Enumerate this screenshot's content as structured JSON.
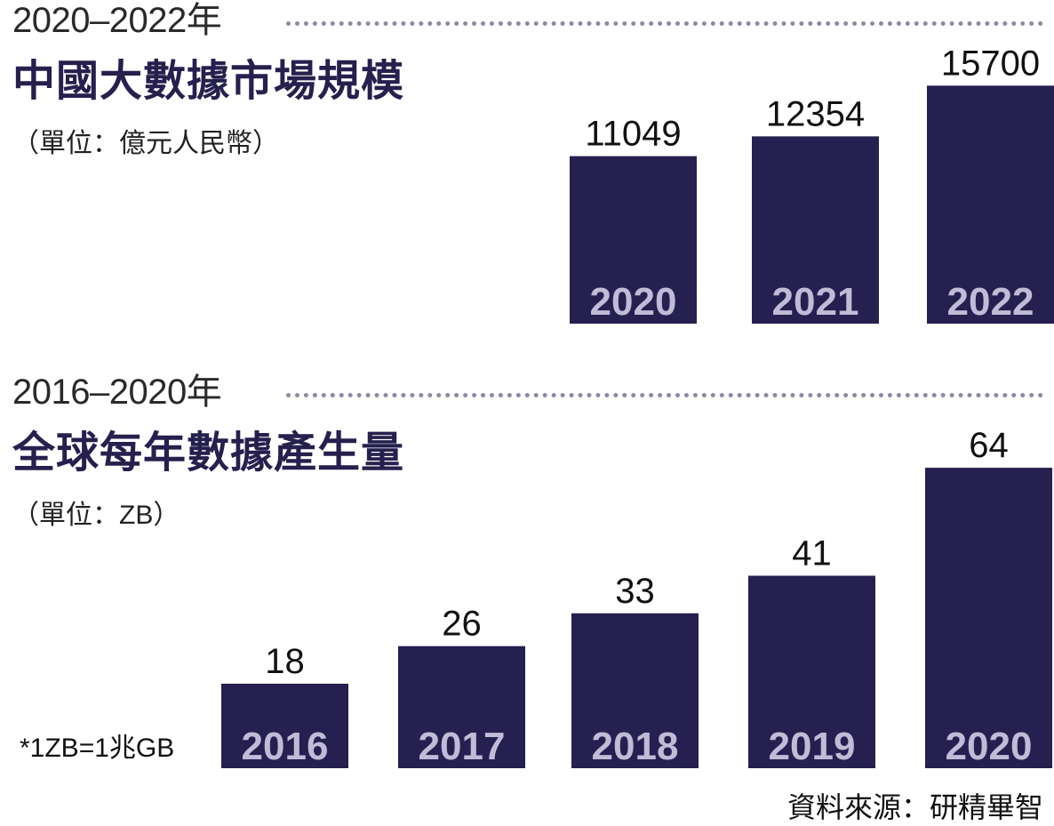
{
  "charts": [
    {
      "period": "2020–2022年",
      "title": "中國大數據市場規模",
      "unit": "（單位：億元人民幣）"
    },
    {
      "period": "2016–2020年",
      "title": "全球每年數據產生量",
      "unit": "（單位：ZB）"
    }
  ],
  "footnote": "*1ZB=1兆GB",
  "source": "資料來源：研精畢智",
  "colors": {
    "bar": "#25204f",
    "year_label": "#c0bcd8",
    "title": "#25204d",
    "dots": "#8d8aa6"
  },
  "chart_data": [
    {
      "type": "bar",
      "title": "中國大數據市場規模",
      "categories": [
        "2020",
        "2021",
        "2022"
      ],
      "values": [
        11049,
        12354,
        15700
      ],
      "ylabel": "",
      "ylim": [
        0,
        20000
      ]
    },
    {
      "type": "bar",
      "title": "全球每年數據產生量",
      "categories": [
        "2016",
        "2017",
        "2018",
        "2019",
        "2020"
      ],
      "values": [
        18,
        26,
        33,
        41,
        64
      ],
      "ylabel": "",
      "ylim": [
        0,
        100
      ]
    }
  ]
}
